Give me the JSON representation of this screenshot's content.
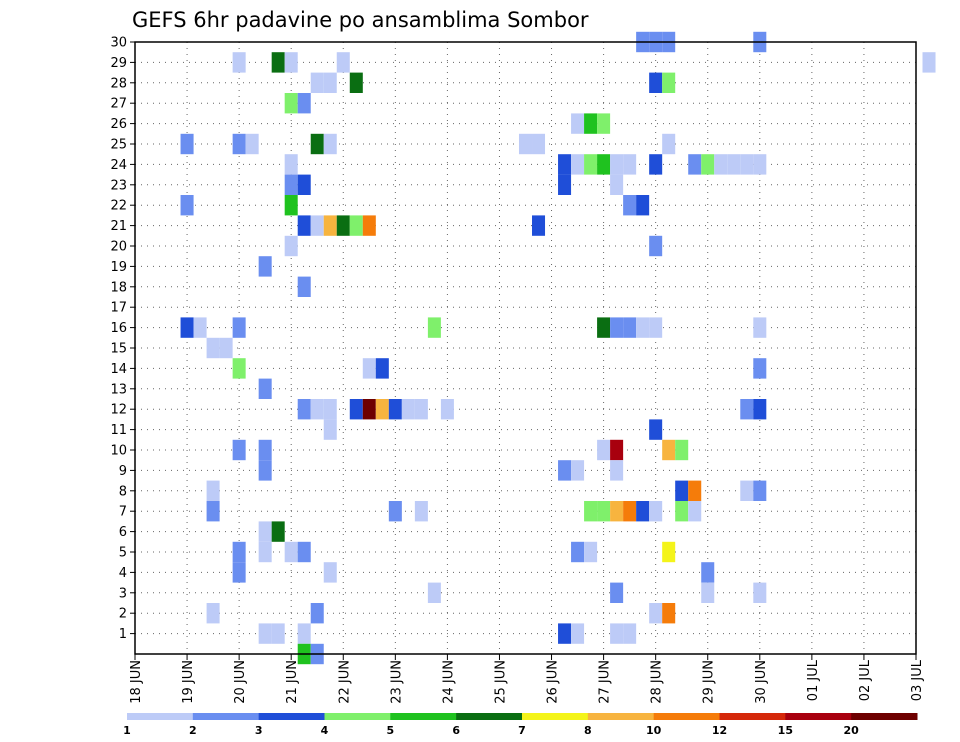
{
  "chart_data": {
    "type": "heatmap",
    "title": "GEFS 6hr padavine po ansamblima Sombor",
    "xlabel": "",
    "ylabel": "",
    "x_ticks": [
      "18 JUN",
      "19 JUN",
      "20 JUN",
      "21 JUN",
      "22 JUN",
      "23 JUN",
      "24 JUN",
      "25 JUN",
      "26 JUN",
      "27 JUN",
      "28 JUN",
      "29 JUN",
      "30 JUN",
      "01 JUL",
      "02 JUL",
      "03 JUL"
    ],
    "x_steps_per_day": 4,
    "ylim": [
      0,
      30
    ],
    "y_ticks": [
      1,
      2,
      3,
      4,
      5,
      6,
      7,
      8,
      9,
      10,
      11,
      12,
      13,
      14,
      15,
      16,
      17,
      18,
      19,
      20,
      21,
      22,
      23,
      24,
      25,
      26,
      27,
      28,
      29,
      30
    ],
    "grid": true,
    "colorbar": {
      "thresholds": [
        "1",
        "2",
        "3",
        "4",
        "5",
        "6",
        "7",
        "8",
        "10",
        "12",
        "15",
        "20"
      ],
      "colors": [
        "#bdcbf7",
        "#6a8ef0",
        "#1f4ed8",
        "#7ff06b",
        "#1fc21f",
        "#0a6e12",
        "#f4f41a",
        "#f7b43f",
        "#f57c0a",
        "#d5280a",
        "#a8000e",
        "#6e0000"
      ]
    },
    "cells": [
      {
        "step": 39,
        "member": 30,
        "c": 1
      },
      {
        "step": 40,
        "member": 30,
        "c": 1
      },
      {
        "step": 41,
        "member": 30,
        "c": 1
      },
      {
        "step": 48,
        "member": 30,
        "c": 1
      },
      {
        "step": 8,
        "member": 29,
        "c": 0
      },
      {
        "step": 11,
        "member": 29,
        "c": 5
      },
      {
        "step": 12,
        "member": 29,
        "c": 0
      },
      {
        "step": 16,
        "member": 29,
        "c": 0
      },
      {
        "step": 61,
        "member": 29,
        "c": 0
      },
      {
        "step": 14,
        "member": 28,
        "c": 0
      },
      {
        "step": 15,
        "member": 28,
        "c": 0
      },
      {
        "step": 17,
        "member": 28,
        "c": 5
      },
      {
        "step": 40,
        "member": 28,
        "c": 2
      },
      {
        "step": 41,
        "member": 28,
        "c": 3
      },
      {
        "step": 12,
        "member": 27,
        "c": 3
      },
      {
        "step": 13,
        "member": 27,
        "c": 1
      },
      {
        "step": 34,
        "member": 26,
        "c": 0
      },
      {
        "step": 35,
        "member": 26,
        "c": 4
      },
      {
        "step": 36,
        "member": 26,
        "c": 3
      },
      {
        "step": 4,
        "member": 25,
        "c": 1
      },
      {
        "step": 8,
        "member": 25,
        "c": 1
      },
      {
        "step": 9,
        "member": 25,
        "c": 0
      },
      {
        "step": 14,
        "member": 25,
        "c": 5
      },
      {
        "step": 15,
        "member": 25,
        "c": 0
      },
      {
        "step": 30,
        "member": 25,
        "c": 0
      },
      {
        "step": 31,
        "member": 25,
        "c": 0
      },
      {
        "step": 41,
        "member": 25,
        "c": 0
      },
      {
        "step": 12,
        "member": 24,
        "c": 0
      },
      {
        "step": 33,
        "member": 24,
        "c": 2
      },
      {
        "step": 34,
        "member": 24,
        "c": 0
      },
      {
        "step": 35,
        "member": 24,
        "c": 3
      },
      {
        "step": 36,
        "member": 24,
        "c": 4
      },
      {
        "step": 37,
        "member": 24,
        "c": 0
      },
      {
        "step": 38,
        "member": 24,
        "c": 0
      },
      {
        "step": 40,
        "member": 24,
        "c": 2
      },
      {
        "step": 43,
        "member": 24,
        "c": 1
      },
      {
        "step": 44,
        "member": 24,
        "c": 3
      },
      {
        "step": 45,
        "member": 24,
        "c": 0
      },
      {
        "step": 46,
        "member": 24,
        "c": 0
      },
      {
        "step": 47,
        "member": 24,
        "c": 0
      },
      {
        "step": 48,
        "member": 24,
        "c": 0
      },
      {
        "step": 12,
        "member": 23,
        "c": 1
      },
      {
        "step": 13,
        "member": 23,
        "c": 2
      },
      {
        "step": 33,
        "member": 23,
        "c": 2
      },
      {
        "step": 37,
        "member": 23,
        "c": 0
      },
      {
        "step": 4,
        "member": 22,
        "c": 1
      },
      {
        "step": 12,
        "member": 22,
        "c": 4
      },
      {
        "step": 38,
        "member": 22,
        "c": 1
      },
      {
        "step": 39,
        "member": 22,
        "c": 2
      },
      {
        "step": 13,
        "member": 21,
        "c": 2
      },
      {
        "step": 14,
        "member": 21,
        "c": 0
      },
      {
        "step": 15,
        "member": 21,
        "c": 7
      },
      {
        "step": 16,
        "member": 21,
        "c": 5
      },
      {
        "step": 17,
        "member": 21,
        "c": 3
      },
      {
        "step": 18,
        "member": 21,
        "c": 8
      },
      {
        "step": 31,
        "member": 21,
        "c": 2
      },
      {
        "step": 12,
        "member": 20,
        "c": 0
      },
      {
        "step": 40,
        "member": 20,
        "c": 1
      },
      {
        "step": 10,
        "member": 19,
        "c": 1
      },
      {
        "step": 13,
        "member": 18,
        "c": 1
      },
      {
        "step": 4,
        "member": 16,
        "c": 2
      },
      {
        "step": 5,
        "member": 16,
        "c": 0
      },
      {
        "step": 6,
        "member": 15,
        "c": 0
      },
      {
        "step": 7,
        "member": 15,
        "c": 0
      },
      {
        "step": 8,
        "member": 16,
        "c": 1
      },
      {
        "step": 23,
        "member": 16,
        "c": 3
      },
      {
        "step": 36,
        "member": 16,
        "c": 5
      },
      {
        "step": 37,
        "member": 16,
        "c": 1
      },
      {
        "step": 38,
        "member": 16,
        "c": 1
      },
      {
        "step": 39,
        "member": 16,
        "c": 0
      },
      {
        "step": 40,
        "member": 16,
        "c": 0
      },
      {
        "step": 48,
        "member": 16,
        "c": 0
      },
      {
        "step": 8,
        "member": 14,
        "c": 3
      },
      {
        "step": 18,
        "member": 14,
        "c": 0
      },
      {
        "step": 19,
        "member": 14,
        "c": 2
      },
      {
        "step": 48,
        "member": 14,
        "c": 1
      },
      {
        "step": 10,
        "member": 13,
        "c": 1
      },
      {
        "step": 13,
        "member": 12,
        "c": 1
      },
      {
        "step": 14,
        "member": 12,
        "c": 0
      },
      {
        "step": 15,
        "member": 12,
        "c": 0
      },
      {
        "step": 17,
        "member": 12,
        "c": 2
      },
      {
        "step": 18,
        "member": 12,
        "c": 11
      },
      {
        "step": 19,
        "member": 12,
        "c": 7
      },
      {
        "step": 20,
        "member": 12,
        "c": 2
      },
      {
        "step": 21,
        "member": 12,
        "c": 0
      },
      {
        "step": 22,
        "member": 12,
        "c": 0
      },
      {
        "step": 24,
        "member": 12,
        "c": 0
      },
      {
        "step": 47,
        "member": 12,
        "c": 1
      },
      {
        "step": 48,
        "member": 12,
        "c": 2
      },
      {
        "step": 15,
        "member": 11,
        "c": 0
      },
      {
        "step": 40,
        "member": 11,
        "c": 2
      },
      {
        "step": 8,
        "member": 10,
        "c": 1
      },
      {
        "step": 10,
        "member": 10,
        "c": 1
      },
      {
        "step": 36,
        "member": 10,
        "c": 0
      },
      {
        "step": 37,
        "member": 10,
        "c": 10
      },
      {
        "step": 41,
        "member": 10,
        "c": 7
      },
      {
        "step": 42,
        "member": 10,
        "c": 3
      },
      {
        "step": 10,
        "member": 9,
        "c": 1
      },
      {
        "step": 33,
        "member": 9,
        "c": 1
      },
      {
        "step": 34,
        "member": 9,
        "c": 0
      },
      {
        "step": 37,
        "member": 9,
        "c": 0
      },
      {
        "step": 6,
        "member": 8,
        "c": 0
      },
      {
        "step": 42,
        "member": 8,
        "c": 2
      },
      {
        "step": 43,
        "member": 8,
        "c": 8
      },
      {
        "step": 47,
        "member": 8,
        "c": 0
      },
      {
        "step": 48,
        "member": 8,
        "c": 1
      },
      {
        "step": 6,
        "member": 7,
        "c": 1
      },
      {
        "step": 20,
        "member": 7,
        "c": 1
      },
      {
        "step": 22,
        "member": 7,
        "c": 0
      },
      {
        "step": 35,
        "member": 7,
        "c": 3
      },
      {
        "step": 36,
        "member": 7,
        "c": 3
      },
      {
        "step": 37,
        "member": 7,
        "c": 7
      },
      {
        "step": 38,
        "member": 7,
        "c": 8
      },
      {
        "step": 39,
        "member": 7,
        "c": 2
      },
      {
        "step": 40,
        "member": 7,
        "c": 0
      },
      {
        "step": 42,
        "member": 7,
        "c": 3
      },
      {
        "step": 43,
        "member": 7,
        "c": 0
      },
      {
        "step": 10,
        "member": 6,
        "c": 0
      },
      {
        "step": 11,
        "member": 6,
        "c": 5
      },
      {
        "step": 8,
        "member": 5,
        "c": 1
      },
      {
        "step": 10,
        "member": 5,
        "c": 0
      },
      {
        "step": 12,
        "member": 5,
        "c": 0
      },
      {
        "step": 13,
        "member": 5,
        "c": 1
      },
      {
        "step": 34,
        "member": 5,
        "c": 1
      },
      {
        "step": 35,
        "member": 5,
        "c": 0
      },
      {
        "step": 41,
        "member": 5,
        "c": 6
      },
      {
        "step": 8,
        "member": 4,
        "c": 1
      },
      {
        "step": 15,
        "member": 4,
        "c": 0
      },
      {
        "step": 44,
        "member": 4,
        "c": 1
      },
      {
        "step": 23,
        "member": 3,
        "c": 0
      },
      {
        "step": 37,
        "member": 3,
        "c": 1
      },
      {
        "step": 44,
        "member": 3,
        "c": 0
      },
      {
        "step": 48,
        "member": 3,
        "c": 0
      },
      {
        "step": 6,
        "member": 2,
        "c": 0
      },
      {
        "step": 14,
        "member": 2,
        "c": 1
      },
      {
        "step": 40,
        "member": 2,
        "c": 0
      },
      {
        "step": 41,
        "member": 2,
        "c": 8
      },
      {
        "step": 10,
        "member": 1,
        "c": 0
      },
      {
        "step": 11,
        "member": 1,
        "c": 0
      },
      {
        "step": 13,
        "member": 1,
        "c": 0
      },
      {
        "step": 33,
        "member": 1,
        "c": 2
      },
      {
        "step": 34,
        "member": 1,
        "c": 0
      },
      {
        "step": 37,
        "member": 1,
        "c": 0
      },
      {
        "step": 38,
        "member": 1,
        "c": 0
      },
      {
        "step": 13,
        "member": 0,
        "c": 4
      },
      {
        "step": 14,
        "member": 0,
        "c": 1
      }
    ]
  }
}
